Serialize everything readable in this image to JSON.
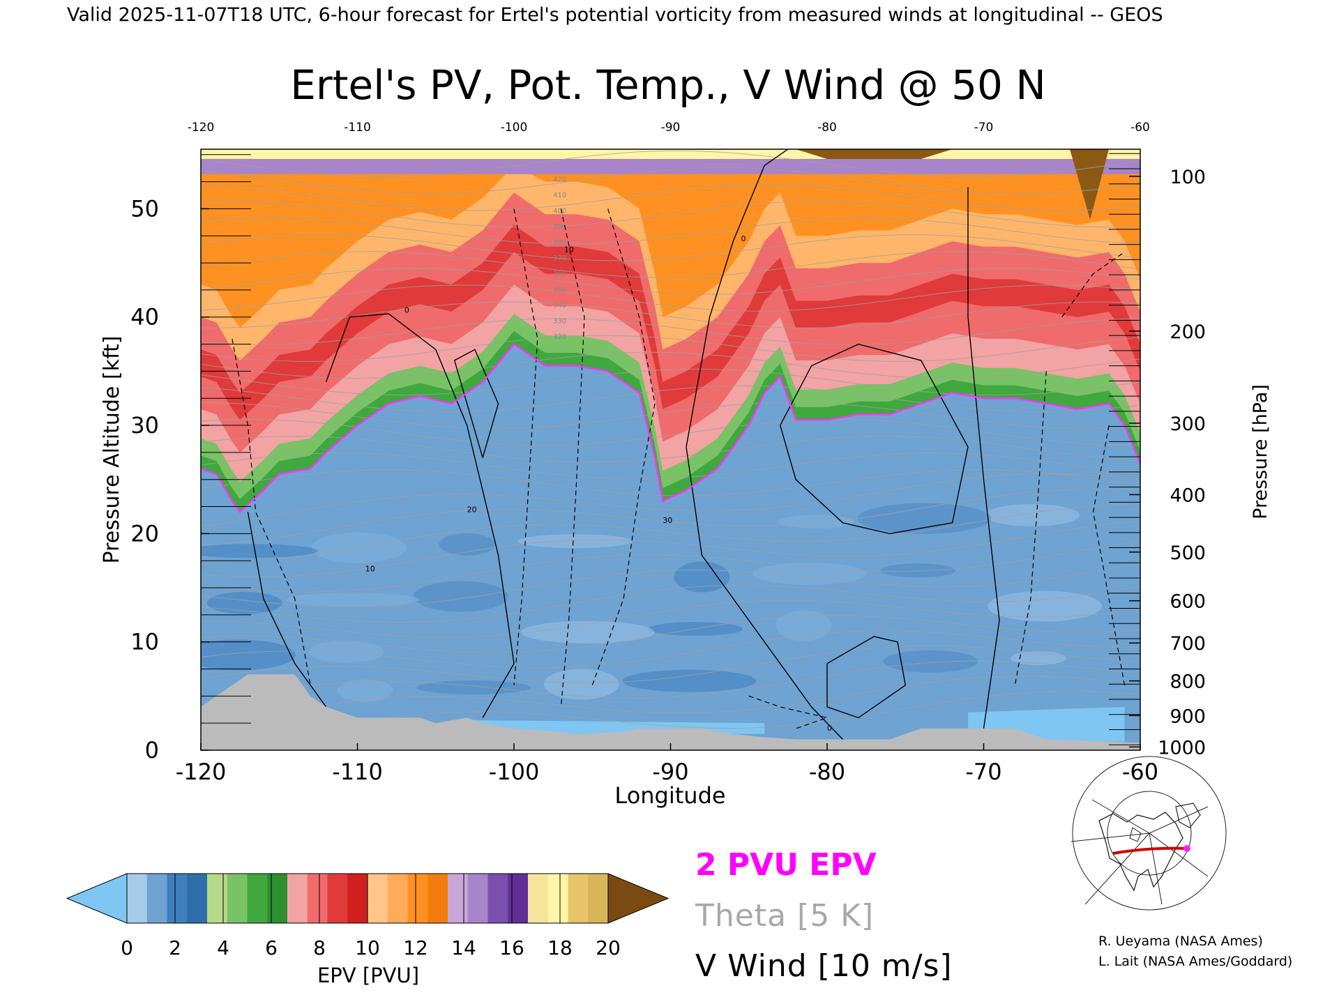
{
  "header": {
    "valid_line": "Valid 2025-11-07T18 UTC, 6-hour forecast for Ertel's potential vorticity from measured winds at longitudinal -- GEOS"
  },
  "chart_data": {
    "type": "heatmap",
    "title": "Ertel's PV, Pot. Temp., V Wind @ 50 N",
    "xlabel": "Longitude",
    "ylabel_left": "Pressure Altitude [kft]",
    "ylabel_right": "Pressure [hPa]",
    "xlim": [
      -120,
      -60
    ],
    "ylim_kft": [
      0,
      55.5
    ],
    "x_ticks_bottom": [
      "-120",
      "-110",
      "-100",
      "-90",
      "-80",
      "-70",
      "-60"
    ],
    "x_ticks_top": [
      "-120",
      "-110",
      "-100",
      "-90",
      "-80",
      "-70",
      "-60"
    ],
    "y_ticks_left": [
      "0",
      "10",
      "20",
      "30",
      "40",
      "50"
    ],
    "y_ticks_right": [
      {
        "label": "100",
        "kft": 53.0
      },
      {
        "label": "200",
        "kft": 38.7
      },
      {
        "label": "300",
        "kft": 30.2
      },
      {
        "label": "400",
        "kft": 23.6
      },
      {
        "label": "500",
        "kft": 18.3
      },
      {
        "label": "600",
        "kft": 13.8
      },
      {
        "label": "700",
        "kft": 9.9
      },
      {
        "label": "800",
        "kft": 6.4
      },
      {
        "label": "900",
        "kft": 3.2
      },
      {
        "label": "1000",
        "kft": 0.3
      }
    ],
    "pv2_contour_kft": [
      [
        -120,
        26
      ],
      [
        -119,
        25.5
      ],
      [
        -118,
        23
      ],
      [
        -117.5,
        22
      ],
      [
        -116,
        24
      ],
      [
        -115,
        25.5
      ],
      [
        -113,
        26
      ],
      [
        -112,
        27.5
      ],
      [
        -110,
        30
      ],
      [
        -108,
        32
      ],
      [
        -106,
        32.7
      ],
      [
        -104,
        32
      ],
      [
        -102,
        34
      ],
      [
        -100,
        37.5
      ],
      [
        -98,
        35.5
      ],
      [
        -96,
        35.5
      ],
      [
        -94,
        35
      ],
      [
        -92,
        33
      ],
      [
        -91,
        27
      ],
      [
        -90.5,
        23
      ],
      [
        -89,
        24
      ],
      [
        -87,
        26
      ],
      [
        -85,
        30
      ],
      [
        -84,
        33
      ],
      [
        -83,
        34.5
      ],
      [
        -82,
        30.5
      ],
      [
        -80,
        30.5
      ],
      [
        -78,
        31
      ],
      [
        -76,
        31
      ],
      [
        -74,
        32
      ],
      [
        -72,
        33
      ],
      [
        -70,
        32.5
      ],
      [
        -68,
        32.5
      ],
      [
        -66,
        32
      ],
      [
        -64,
        31.5
      ],
      [
        -62,
        32
      ],
      [
        -61,
        30
      ],
      [
        -60,
        26.5
      ]
    ],
    "surface_kft": [
      [
        -120,
        4
      ],
      [
        -119,
        5
      ],
      [
        -118,
        6
      ],
      [
        -117,
        7
      ],
      [
        -114,
        7
      ],
      [
        -113.5,
        6
      ],
      [
        -113,
        5
      ],
      [
        -112,
        4
      ],
      [
        -110,
        3
      ],
      [
        -106,
        3
      ],
      [
        -105,
        2.5
      ],
      [
        -103,
        3
      ],
      [
        -102,
        2.5
      ],
      [
        -100,
        2
      ],
      [
        -98,
        1.8
      ],
      [
        -96,
        1.5
      ],
      [
        -93,
        1.7
      ],
      [
        -92,
        2
      ],
      [
        -90,
        2
      ],
      [
        -88,
        2
      ],
      [
        -86,
        1.5
      ],
      [
        -84,
        1.2
      ],
      [
        -82,
        1
      ],
      [
        -80,
        1
      ],
      [
        -76,
        1
      ],
      [
        -74,
        2
      ],
      [
        -72,
        2
      ],
      [
        -70,
        2
      ],
      [
        -68,
        2
      ],
      [
        -66,
        1
      ],
      [
        -64,
        0.9
      ],
      [
        -62,
        0.8
      ],
      [
        -60.5,
        0.7
      ]
    ],
    "v_wind_contours": {
      "positive_solid_label": "0",
      "negative_dashed_labels": [
        "10",
        "20",
        "30"
      ]
    },
    "theta_labels": [
      "320",
      "330",
      "340",
      "350",
      "360",
      "370",
      "380",
      "390",
      "400",
      "410",
      "420"
    ],
    "colorbar": {
      "label": "EPV [PVU]",
      "ticks": [
        "0",
        "2",
        "4",
        "6",
        "8",
        "10",
        "12",
        "14",
        "16",
        "18",
        "20"
      ],
      "under_color": "#7fc6f2",
      "over_color": "#7a4a12",
      "colors": [
        "#a7cbe8",
        "#6ea3d2",
        "#3f7fbd",
        "#2f6ea8",
        "#b8d98a",
        "#79c266",
        "#3fa83f",
        "#2e8f2e",
        "#f2a3a3",
        "#f06b6b",
        "#e03a3a",
        "#cf1f1f",
        "#ffc68a",
        "#ffac5a",
        "#ff9122",
        "#f07d0c",
        "#c8a8d8",
        "#a884c8",
        "#7b4fae",
        "#5f2f96",
        "#f5e59c",
        "#fff5a8",
        "#e9c46a",
        "#d8b55a"
      ]
    },
    "legend": {
      "pv_line": "2 PVU EPV",
      "theta": "Theta [5 K]",
      "vwind": "V Wind [10 m/s]"
    },
    "credits": [
      "R. Ueyama (NASA Ames)",
      "L. Lait (NASA Ames/Goddard)"
    ],
    "colors": {
      "pv_line": "#ff33ff",
      "theta": "#a0a0a0",
      "terrain": "#bbbbbb",
      "map_track": "#cc0000",
      "map_marker": "#ff22ff"
    }
  }
}
